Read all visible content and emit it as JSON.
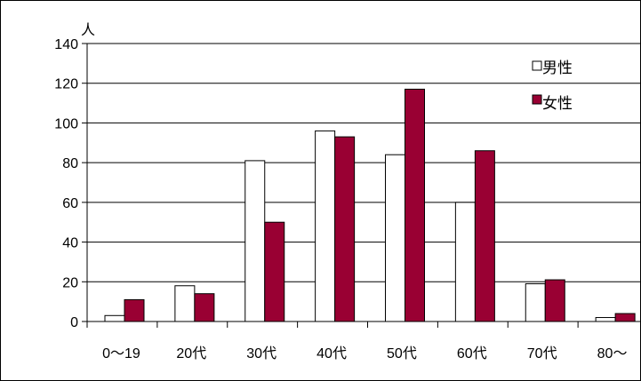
{
  "chart_data": {
    "type": "bar",
    "title": "",
    "xlabel": "",
    "ylabel": "人",
    "ylim": [
      0,
      140
    ],
    "yticks": [
      0,
      20,
      40,
      60,
      80,
      100,
      120,
      140
    ],
    "grid": true,
    "legend_position": "top-right",
    "categories": [
      "0～19",
      "20代",
      "30代",
      "40代",
      "50代",
      "60代",
      "70代",
      "80～"
    ],
    "series": [
      {
        "name": "男性",
        "color": "#ffffff",
        "values": [
          3,
          18,
          81,
          96,
          84,
          60,
          19,
          2
        ]
      },
      {
        "name": "女性",
        "color": "#990033",
        "values": [
          11,
          14,
          50,
          93,
          117,
          86,
          21,
          4
        ]
      }
    ]
  }
}
